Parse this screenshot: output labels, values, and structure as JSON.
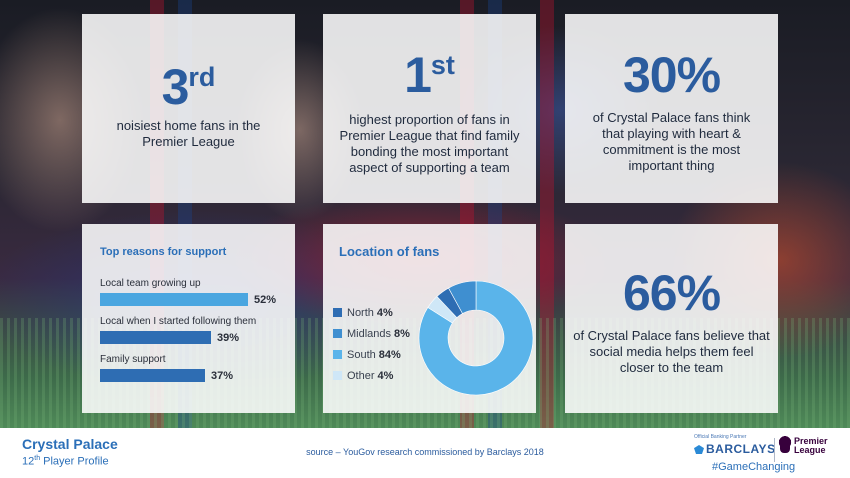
{
  "colors": {
    "accent": "#2b5c9e",
    "bar": "#4aa6e0",
    "bar_dark": "#2e6db3",
    "north": "#2e6db3",
    "midlands": "#3f8fd0",
    "south": "#5ab4ea",
    "other": "#cfe7f7"
  },
  "stats": {
    "s1": {
      "big": "3",
      "sup": "rd",
      "desc": "noisiest home fans in the Premier League"
    },
    "s2": {
      "big": "1",
      "sup": "st",
      "desc": "highest proportion of fans in Premier League that find family bonding the most important aspect of supporting a team"
    },
    "s3": {
      "big": "30%",
      "desc": "of Crystal Palace fans think that playing with heart & commitment is the most important thing"
    },
    "s4": {
      "big": "66%",
      "desc": "of Crystal Palace fans believe that social media helps them feel closer to the team"
    }
  },
  "reasons": {
    "title": "Top reasons for support",
    "items": [
      {
        "label": "Local team growing up",
        "percent": "52%",
        "value": 52
      },
      {
        "label": "Local when I started following them",
        "percent": "39%",
        "value": 39
      },
      {
        "label": "Family support",
        "percent": "37%",
        "value": 37
      }
    ]
  },
  "chart_data": {
    "type": "pie",
    "title": "Location of fans",
    "categories": [
      "North",
      "Midlands",
      "South",
      "Other"
    ],
    "values": [
      4,
      8,
      84,
      4
    ],
    "labels": [
      "4%",
      "8%",
      "84%",
      "4%"
    ]
  },
  "footer": {
    "club": "Crystal Palace",
    "profile_num": "12",
    "profile_sup": "th",
    "profile_rest": "Player Profile",
    "source": "source – YouGov research commissioned by Barclays 2018",
    "brand_small": "Official Banking Partner",
    "barclays": "BARCLAYS",
    "league_line1": "Premier",
    "league_line2": "League",
    "hashtag": "#GameChanging"
  }
}
